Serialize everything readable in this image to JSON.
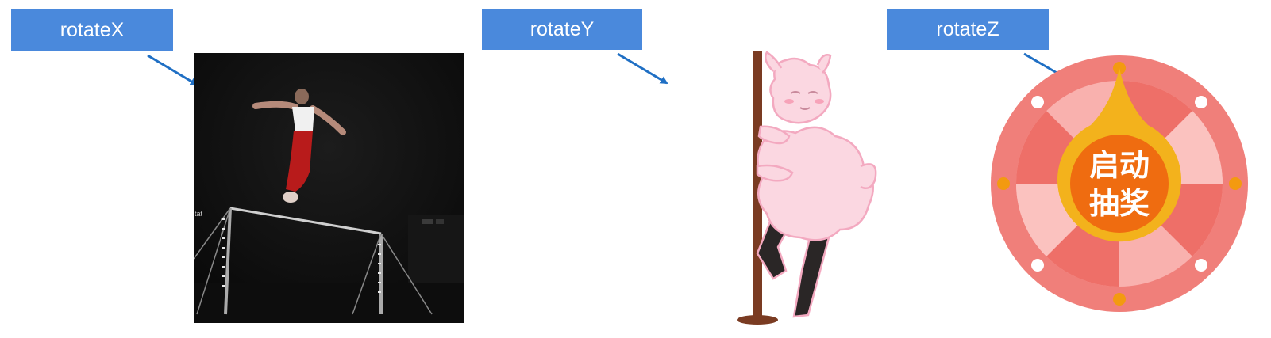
{
  "labels": {
    "x": "rotateX",
    "y": "rotateY",
    "z": "rotateZ"
  },
  "gymnastics": {
    "watermark": "tat"
  },
  "wheel": {
    "line1": "启动",
    "line2": "抽奖"
  },
  "colors": {
    "label_bg": "#4a89dc",
    "arrow": "#1f6fc4",
    "wheel_outer": "#f07f7a",
    "wheel_dark": "#ee6f68",
    "wheel_light": "#f9b1ae",
    "wheel_center": "#f39a10",
    "wheel_center_inner": "#ef6c10"
  },
  "icons": {
    "arrow_x": "arrow-icon",
    "arrow_y": "arrow-icon",
    "arrow_z": "arrow-icon"
  }
}
